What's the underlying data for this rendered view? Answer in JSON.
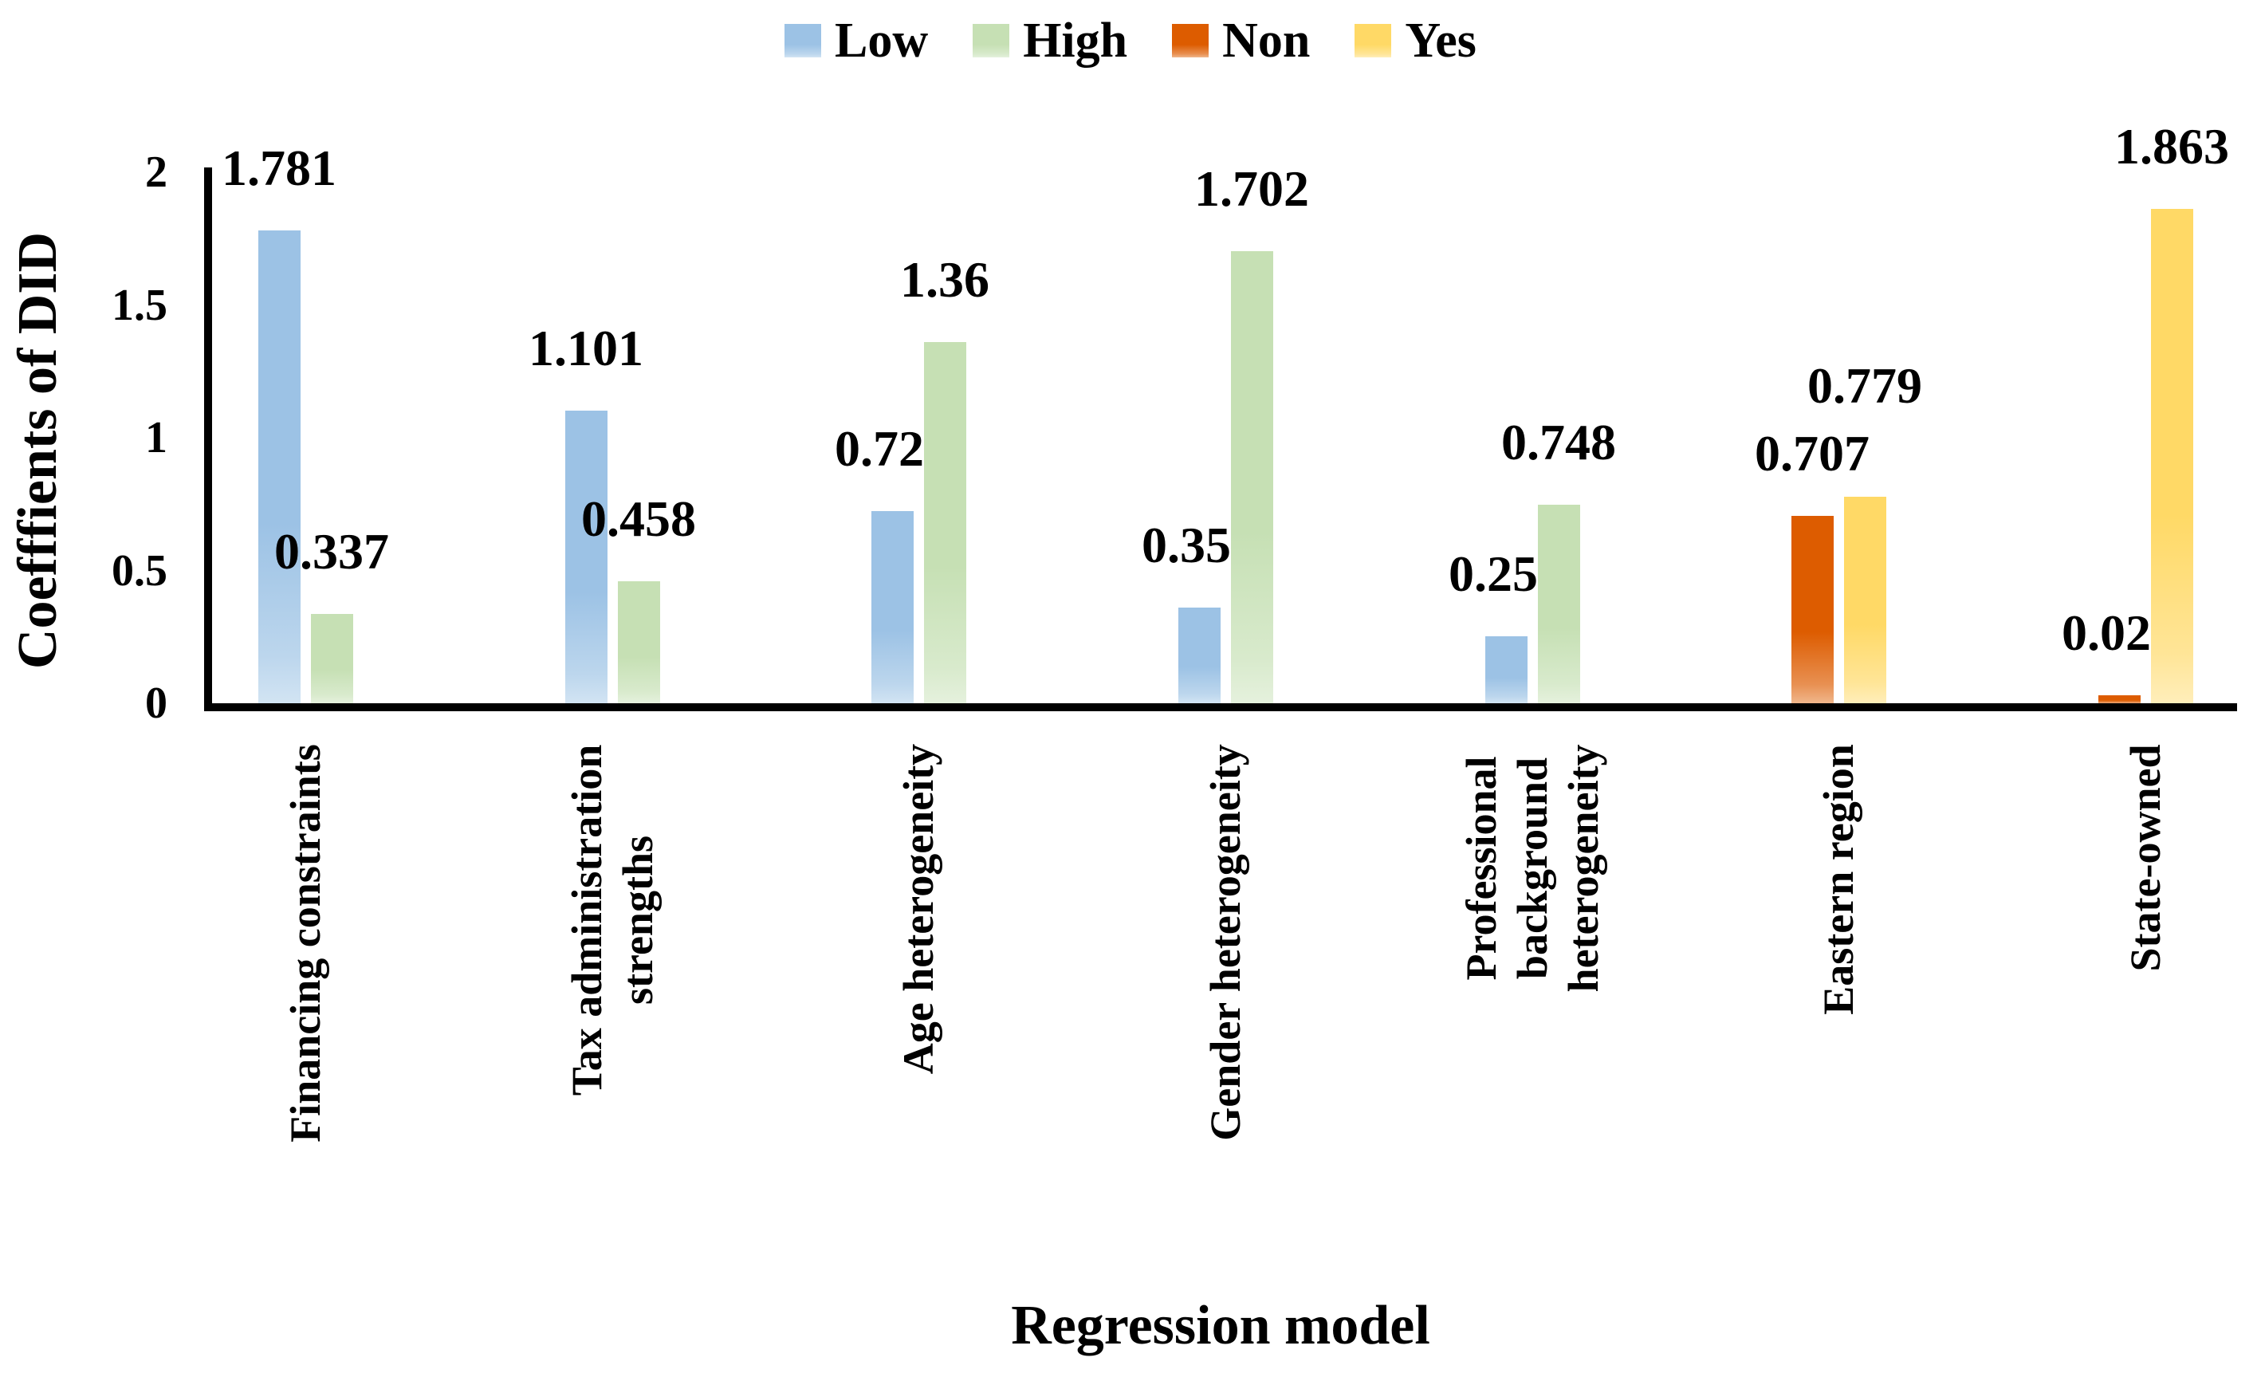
{
  "legend": {
    "items": [
      {
        "label": "Low",
        "color": "#9CC2E5"
      },
      {
        "label": "High",
        "color": "#C6E0B4"
      },
      {
        "label": "Non",
        "color": "#DD5C00"
      },
      {
        "label": "Yes",
        "color": "#FFD966"
      }
    ]
  },
  "y_axis": {
    "title": "Coefffients of DID",
    "ticks": [
      {
        "label": "2",
        "value": 2
      },
      {
        "label": "1.5",
        "value": 1.5
      },
      {
        "label": "1",
        "value": 1
      },
      {
        "label": "0.5",
        "value": 0.5
      },
      {
        "label": "0",
        "value": 0
      }
    ]
  },
  "x_axis": {
    "title": "Regression model"
  },
  "chart_data": {
    "type": "bar",
    "title": "",
    "xlabel": "Regression model",
    "ylabel": "Coefffients of DID",
    "ylim": [
      0,
      2
    ],
    "grid": false,
    "legend_position": "top",
    "categories": [
      "Financing constraints",
      "Tax administration\nstrengths",
      "Age heterogeneity",
      "Gender heterogeneity",
      "Professional\nbackground\nheterogeneity",
      "Eastern region",
      "State-owned"
    ],
    "series": [
      {
        "name": "Low",
        "color": "#9CC2E5",
        "values": [
          1.781,
          1.101,
          0.723,
          0.359,
          0.253,
          null,
          null
        ],
        "labels": [
          "1.781",
          "1.101",
          "0.723",
          "0.359",
          "0.253",
          null,
          null
        ]
      },
      {
        "name": "High",
        "color": "#C6E0B4",
        "values": [
          0.337,
          0.458,
          1.36,
          1.702,
          0.748,
          null,
          null
        ],
        "labels": [
          "0.337",
          "0.458",
          "1.36",
          "1.702",
          "0.748",
          null,
          null
        ]
      },
      {
        "name": "Non",
        "color": "#DD5C00",
        "values": [
          null,
          null,
          null,
          null,
          null,
          0.707,
          0.029
        ],
        "labels": [
          null,
          null,
          null,
          null,
          null,
          "0.707",
          "0.029"
        ]
      },
      {
        "name": "Yes",
        "color": "#FFD966",
        "values": [
          null,
          null,
          null,
          null,
          null,
          0.779,
          1.863
        ],
        "labels": [
          null,
          null,
          null,
          null,
          null,
          "0.779",
          "1.863"
        ]
      }
    ]
  }
}
